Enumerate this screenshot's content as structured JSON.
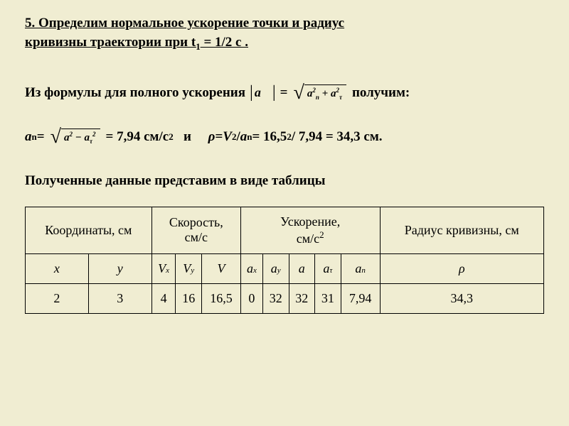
{
  "heading": {
    "line1": "5. Определим нормальное ускорение точки и радиус",
    "line2_part1": "кривизны траектории при  t",
    "line2_sub": "1",
    "line2_part2": "  = 1/2 c ."
  },
  "line1": {
    "text1": "Из формулы для полного ускорения  ",
    "eq_sign": " = ",
    "text2": "   получим:"
  },
  "sqrt1": {
    "a1": "a",
    "exp1": "2",
    "sub1": "n",
    "plus": " + ",
    "a2": "a",
    "exp2": "2",
    "sub2": "τ"
  },
  "line2": {
    "a": "a",
    "sub_n": "n",
    "eq": " = ",
    "result1": " = 7,94 см/с",
    "sup2": "2",
    "and": "   и     ",
    "rho": "ρ",
    "eq2": " = ",
    "v": "V ",
    "sup2b": "2",
    "slash": "/ ",
    "a2": "a ",
    "sub_n2": "n",
    "calc": "= 16,5 ",
    "sup2c": "2",
    "calc2": " / 7,94 = 34,3 см."
  },
  "sqrt2": {
    "a1": "a",
    "exp1": "2",
    "minus": " − ",
    "a2": "a",
    "sub2": "τ",
    "exp2": "2"
  },
  "caption": "Полученные данные представим в виде таблицы",
  "table": {
    "headers": {
      "coords": "Координаты, см",
      "speed_l1": "Скорость,",
      "speed_l2": "см/с",
      "accel_l1": "Ускорение,",
      "accel_l2": "см/с",
      "accel_sup": "2",
      "radius": "Радиус кривизны, см"
    },
    "vars": {
      "x": "x",
      "y": "y",
      "Vx": "V",
      "Vx_sub": "x",
      "Vy": "V",
      "Vy_sub": "y",
      "V": "V",
      "ax": "a",
      "ax_sub": "x",
      "ay": "a",
      "ay_sub": "y",
      "a": "a",
      "at": "a",
      "at_sub": "τ",
      "an": "a",
      "an_sub": "n",
      "rho": "ρ"
    },
    "row": {
      "x": "2",
      "y": "3",
      "Vx": "4",
      "Vy": "16",
      "V": "16,5",
      "ax": "0",
      "ay": "32",
      "a": "32",
      "at": "31",
      "an": "7,94",
      "rho": "34,3"
    }
  },
  "colors": {
    "bg": "#f0edd2",
    "text": "#000000",
    "border": "#000000"
  }
}
